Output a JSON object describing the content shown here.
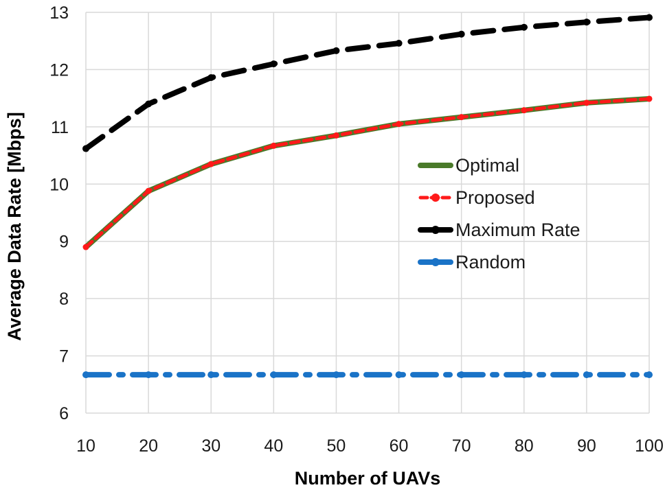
{
  "chart_data": {
    "type": "line",
    "title": "",
    "xlabel": "Number of UAVs",
    "ylabel": "Average Data Rate [Mbps]",
    "x": [
      10,
      20,
      30,
      40,
      50,
      60,
      70,
      80,
      90,
      100
    ],
    "xlim": [
      10,
      100
    ],
    "ylim": [
      6,
      13
    ],
    "xticks": [
      "10",
      "20",
      "30",
      "40",
      "50",
      "60",
      "70",
      "80",
      "90",
      "100"
    ],
    "yticks": [
      "6",
      "7",
      "8",
      "9",
      "10",
      "11",
      "12",
      "13"
    ],
    "grid": true,
    "legend_position": "center-right",
    "series": [
      {
        "name": "Optimal",
        "color": "#4a7a2a",
        "style": "solid",
        "values": [
          8.9,
          9.88,
          10.35,
          10.67,
          10.85,
          11.05,
          11.17,
          11.29,
          11.42,
          11.49
        ]
      },
      {
        "name": "Proposed",
        "color": "#ff1a1a",
        "style": "dash",
        "values": [
          8.9,
          9.88,
          10.35,
          10.67,
          10.85,
          11.05,
          11.17,
          11.29,
          11.42,
          11.49
        ]
      },
      {
        "name": "Maximum Rate",
        "color": "#000000",
        "style": "longdash",
        "values": [
          10.62,
          11.4,
          11.86,
          12.1,
          12.33,
          12.46,
          12.62,
          12.74,
          12.83,
          12.91
        ]
      },
      {
        "name": "Random",
        "color": "#1a73c7",
        "style": "dashdot",
        "values": [
          6.67,
          6.67,
          6.67,
          6.67,
          6.67,
          6.67,
          6.67,
          6.67,
          6.67,
          6.67
        ]
      }
    ]
  }
}
